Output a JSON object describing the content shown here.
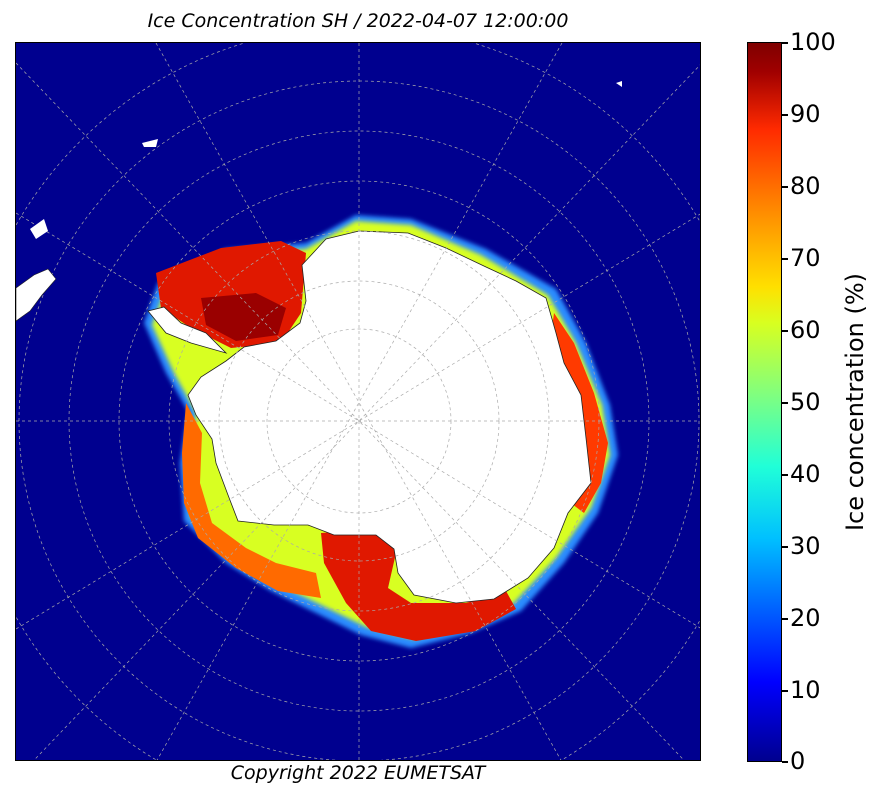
{
  "title": "Ice Concentration SH / 2022-04-07 12:00:00",
  "copyright": "Copyright 2022 EUMETSAT",
  "colorbar": {
    "label": "Ice concentration (%)",
    "ticks": [
      "100",
      "90",
      "80",
      "70",
      "60",
      "50",
      "40",
      "30",
      "20",
      "10",
      "0"
    ],
    "min": 0,
    "max": 100,
    "colormap": "jet"
  },
  "colors": {
    "ocean": "#00008f",
    "land": "#ffffff",
    "ice_high": "#a00000",
    "ice_mid": "#ff2a00",
    "ice_low": "#80ff7f"
  }
}
